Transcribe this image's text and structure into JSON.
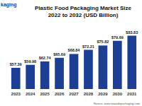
{
  "chart_data": {
    "type": "bar",
    "title": "Plastic Food Packaging Market Size",
    "subtitle": "2022 to 2032 (USD Billion)",
    "annotations": [
      "kaging",
      "Source: www.towardspackaging.com"
    ],
    "categories": [
      "2023",
      "2024",
      "2025",
      "2026",
      "2027",
      "2028",
      "2029",
      "2030",
      "2031"
    ],
    "values": [
      57.39,
      59.98,
      62.74,
      65.69,
      68.84,
      72.21,
      75.82,
      79.69,
      83.83
    ],
    "value_labels": [
      "$57.39",
      "$59.98",
      "$62.74",
      "$65.69",
      "$68.84",
      "$72.21",
      "$75.82",
      "$79.69",
      "$83.83"
    ],
    "color": "#1c3f94",
    "ylim": [
      40,
      90
    ],
    "yticks": [
      40,
      50,
      60,
      70,
      80,
      90
    ],
    "grid": false,
    "data_labels": true,
    "tick_labels": "x"
  }
}
